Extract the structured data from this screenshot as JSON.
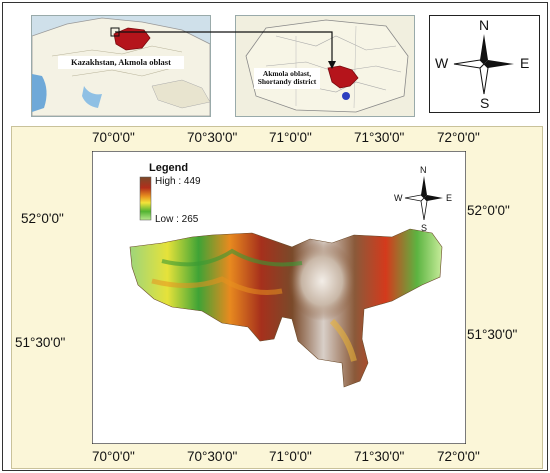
{
  "insets": {
    "country_label": "Kazakhstan, Akmola oblast",
    "oblast_label": "Akmola oblast, Shortandy district"
  },
  "north_arrow_large": {
    "n": "N",
    "s": "S",
    "e": "E",
    "w": "W"
  },
  "north_arrow_small": {
    "n": "N",
    "s": "S",
    "e": "E",
    "w": "W"
  },
  "map": {
    "top_ticks": [
      "70°0'0\"",
      "70°30'0\"",
      "71°0'0\"",
      "71°30'0\"",
      "72°0'0\""
    ],
    "bottom_ticks": [
      "70°0'0\"",
      "70°30'0\"",
      "71°0'0\"",
      "71°30'0\"",
      "72°0'0\""
    ],
    "left_ticks": [
      "52°0'0\"",
      "51°30'0\""
    ],
    "right_ticks": [
      "52°0'0\"",
      "51°30'0\""
    ]
  },
  "legend": {
    "title": "Legend",
    "high_label": "High : 449",
    "low_label": "Low : 265",
    "gradient_colors": [
      "#7a4a2a",
      "#b22e1b",
      "#e8921f",
      "#f2e43a",
      "#52b432",
      "#b8e78c"
    ]
  },
  "colors": {
    "highlight_region": "#b5141b",
    "map_background": "#fbf6d8",
    "water": "#6fa9d8"
  }
}
